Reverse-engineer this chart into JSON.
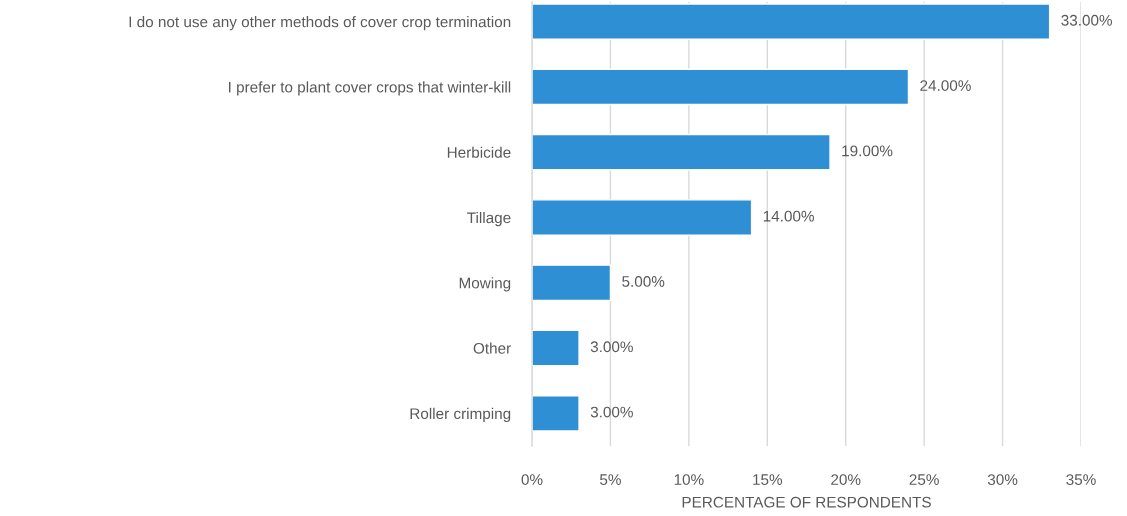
{
  "chart_data": {
    "type": "bar",
    "orientation": "horizontal",
    "categories": [
      "I do not use any other methods of cover crop termination",
      "I prefer to plant cover crops that winter-kill",
      "Herbicide",
      "Tillage",
      "Mowing",
      "Other",
      "Roller crimping"
    ],
    "values": [
      33,
      24,
      19,
      14,
      5,
      3,
      3
    ],
    "value_labels": [
      "33.00%",
      "24.00%",
      "19.00%",
      "14.00%",
      "5.00%",
      "3.00%",
      "3.00%"
    ],
    "color": "#2e8fd4",
    "xlabel": "PERCENTAGE OF RESPONDENTS",
    "xlim": [
      0,
      35
    ],
    "xticks": [
      {
        "value": 0,
        "label": "0%"
      },
      {
        "value": 5,
        "label": "5%"
      },
      {
        "value": 10,
        "label": "10%"
      },
      {
        "value": 15,
        "label": "15%"
      },
      {
        "value": 20,
        "label": "20%"
      },
      {
        "value": 25,
        "label": "25%"
      },
      {
        "value": 30,
        "label": "30%"
      },
      {
        "value": 35,
        "label": "35%"
      }
    ],
    "grid": "x"
  }
}
